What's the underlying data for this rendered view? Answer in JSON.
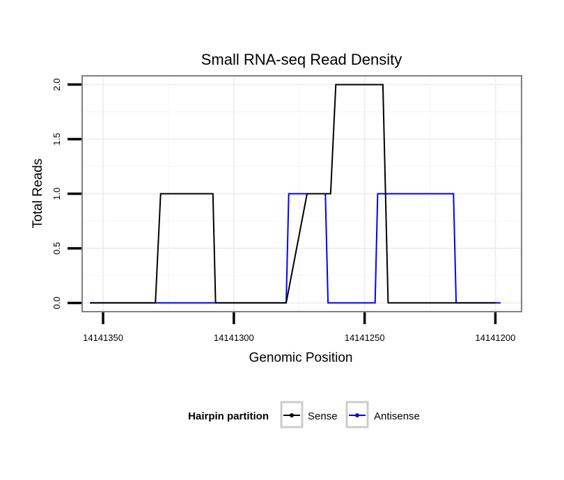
{
  "chart_data": {
    "type": "line",
    "title": "Small RNA-seq Read Density",
    "xlabel": "Genomic Position",
    "ylabel": "Total Reads",
    "xlim": [
      14141358,
      14141190
    ],
    "ylim": [
      -0.08,
      2.08
    ],
    "x_reversed": true,
    "grid": true,
    "x_ticks": [
      14141350,
      14141300,
      14141250,
      14141200
    ],
    "x_tick_labels": [
      "14141350",
      "14141300",
      "14141250",
      "14141200"
    ],
    "y_ticks": [
      0,
      0.5,
      1,
      1.5,
      2
    ],
    "y_tick_labels": [
      "0.0",
      "0.5",
      "1.0",
      "1.5",
      "2.0"
    ],
    "legend": {
      "title": "Hairpin partition",
      "placement": "bottom",
      "entries": [
        "Sense",
        "Antisense"
      ]
    },
    "series": [
      {
        "name": "Sense",
        "color": "#000000",
        "x": [
          14141355,
          14141330,
          14141328,
          14141308,
          14141307,
          14141281,
          14141280,
          14141272,
          14141263,
          14141261,
          14141243,
          14141241,
          14141200
        ],
        "y": [
          0,
          0,
          1,
          1,
          0,
          0,
          0,
          1,
          1,
          2,
          2,
          0,
          0
        ]
      },
      {
        "name": "Antisense",
        "color": "#0000ff",
        "x": [
          14141355,
          14141280,
          14141279,
          14141265,
          14141264,
          14141246,
          14141245,
          14141235,
          14141216,
          14141215,
          14141199,
          14141198
        ],
        "y": [
          0,
          0,
          1,
          1,
          0,
          0,
          1,
          1,
          1,
          0,
          0,
          0
        ]
      }
    ]
  }
}
